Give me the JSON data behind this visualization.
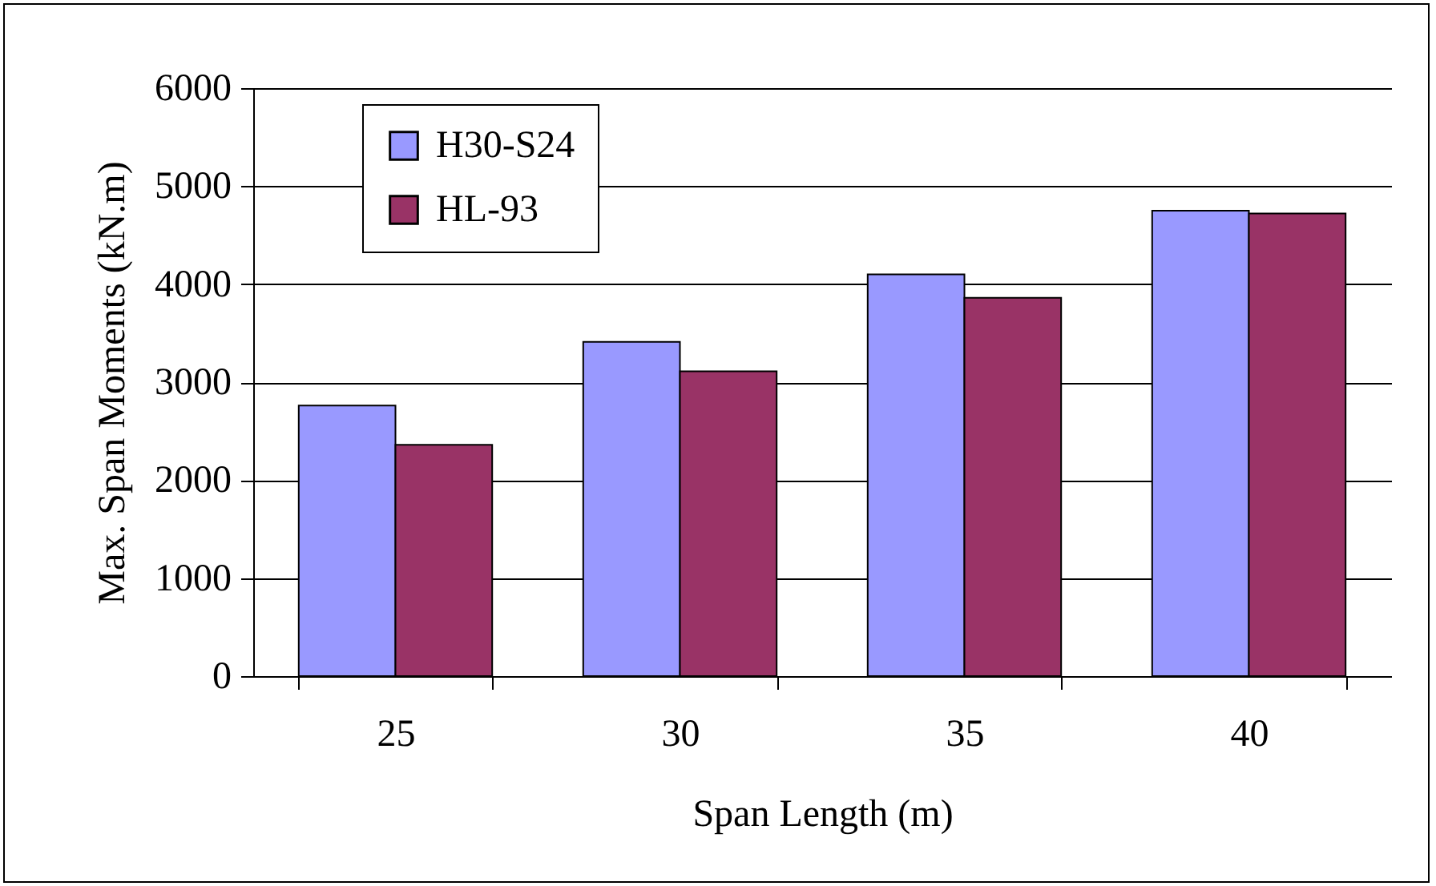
{
  "chart_data": {
    "type": "bar",
    "xlabel": "Span Length (m)",
    "ylabel": "Max. Span Moments (kN.m)",
    "categories": [
      "25",
      "30",
      "35",
      "40"
    ],
    "series": [
      {
        "name": "H30-S24",
        "color": "#9999ff",
        "values": [
          2760,
          3410,
          4100,
          4750
        ]
      },
      {
        "name": "HL-93",
        "color": "#993366",
        "values": [
          2360,
          3110,
          3860,
          4720
        ]
      }
    ],
    "ylim": [
      0,
      6000
    ],
    "yticks": [
      0,
      1000,
      2000,
      3000,
      4000,
      5000,
      6000
    ],
    "grid": "y",
    "legend": "top left"
  }
}
